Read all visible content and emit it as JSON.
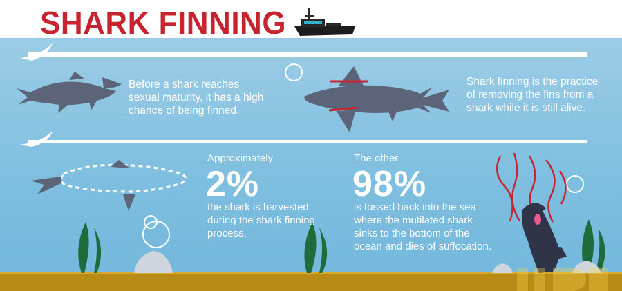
{
  "title": "SHARK FINNING",
  "panel1": {
    "text": "Before a shark reaches sexual maturity, it has a high chance of being finned."
  },
  "panel2": {
    "text": "Shark finning is the practice of removing the fins from a shark while it is still alive."
  },
  "stat_harvested": {
    "intro": "Approximately",
    "value": "2%",
    "text": "the shark is harvested during the shark finning process."
  },
  "stat_tossed": {
    "intro": "The other",
    "value": "98%",
    "text": "is tossed back into the sea where the mutilated shark sinks to the bottom of the ocean and dies of suffocation."
  },
  "colors": {
    "title_red": "#c8242f",
    "water": "#7fbfe0",
    "shark": "#5b6478",
    "wound_red": "#c8242f",
    "seaweed": "#1f6b3a",
    "seafloor": "#b88a16"
  },
  "icons": [
    "boat-icon",
    "hammerhead-shark-icon",
    "shark-with-cut-marks-icon",
    "finned-shark-icon",
    "sinking-shark-icon",
    "seaweed-icon",
    "rock-icon",
    "bubble-icon"
  ]
}
